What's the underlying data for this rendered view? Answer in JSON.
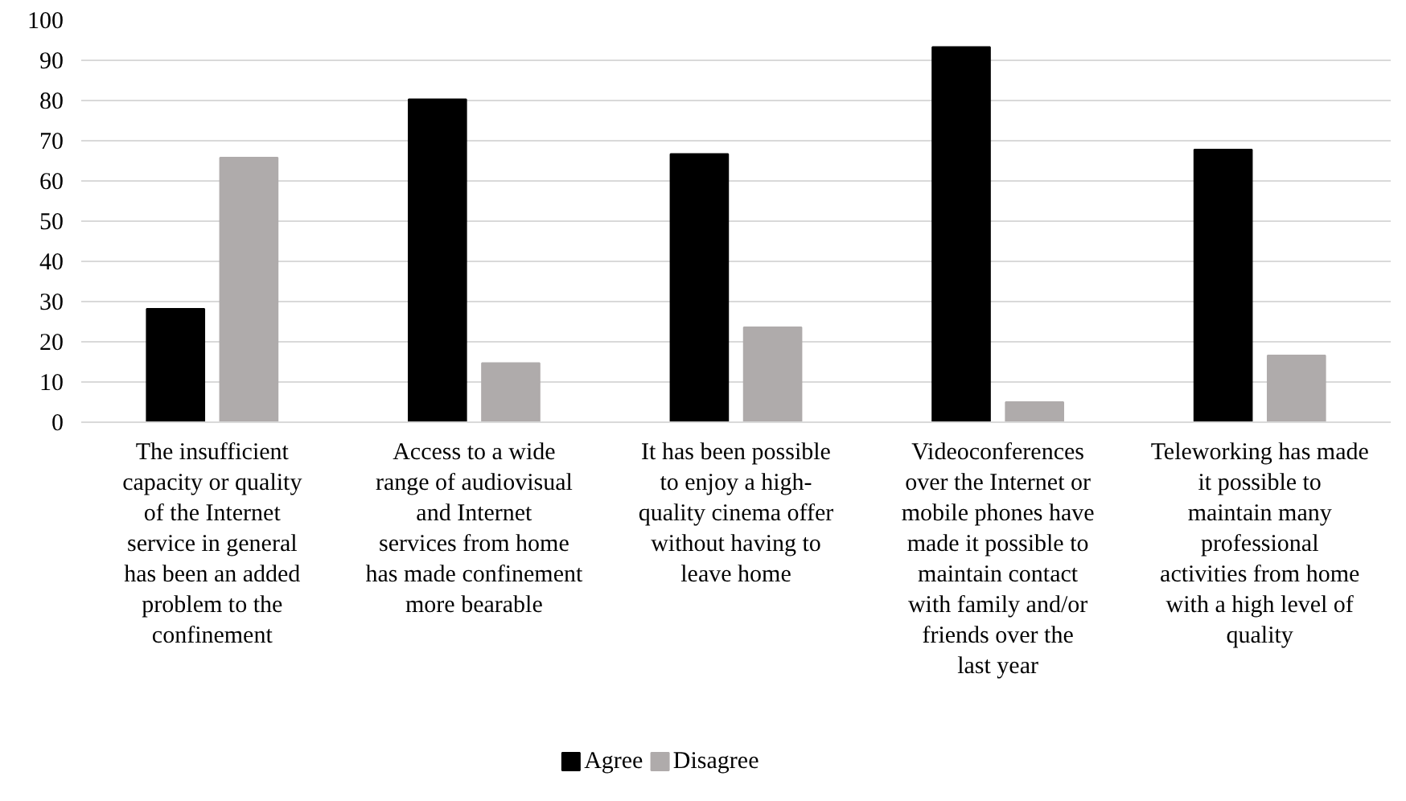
{
  "chart_data": {
    "type": "bar",
    "categories": [
      "The insufficient capacity or quality of the Internet service in general has been an added problem to the confinement",
      "Access to a wide range of audiovisual and Internet services from home has made confinement more bearable",
      "It has been possible to enjoy a high-quality cinema offer without having to leave home",
      "Videoconferences over the Internet or mobile phones have made it possible to maintain contact with family and/or friends over the last year",
      "Teleworking has made it possible to maintain many professional activities from home with a high level of quality"
    ],
    "series": [
      {
        "name": "Agree",
        "color": "#000000",
        "values": [
          28.2,
          80.3,
          66.7,
          93.3,
          67.8
        ]
      },
      {
        "name": "Disagree",
        "color": "#afabab",
        "values": [
          65.8,
          14.7,
          23.6,
          5.0,
          16.6
        ]
      }
    ],
    "ylim": [
      0,
      100
    ],
    "yticks": [
      0,
      10,
      20,
      30,
      40,
      50,
      60,
      70,
      80,
      90,
      100
    ],
    "grid": "y",
    "legend": "bottom"
  }
}
